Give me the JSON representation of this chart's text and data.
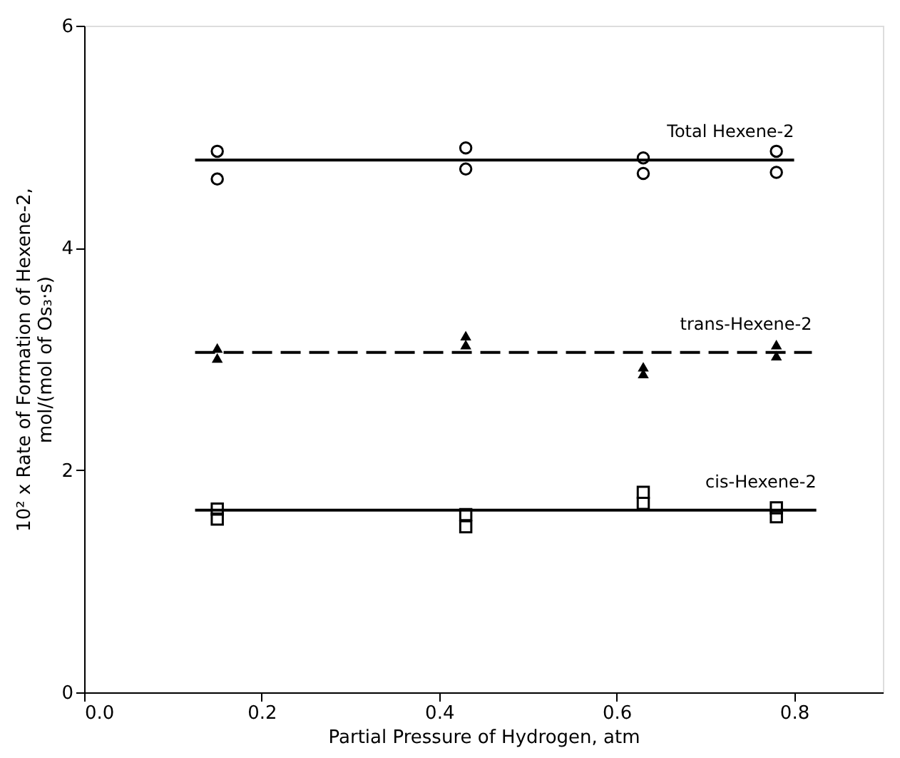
{
  "chart_data": {
    "type": "scatter",
    "xlabel": "Partial Pressure of Hydrogen, atm",
    "ylabel": "10² x Rate of Formation of Hexene-2,\nmol/(mol of Os₃·s)",
    "xlim": [
      0,
      0.9
    ],
    "ylim": [
      0,
      6
    ],
    "xticks": [
      {
        "value": 0,
        "label": "0.0"
      },
      0.2,
      0.4,
      0.6,
      0.8
    ],
    "yticks": [
      0,
      2,
      4,
      6
    ],
    "grid": false,
    "series": [
      {
        "marker": "circle",
        "color": "#000000",
        "x": [
          0.15,
          0.15,
          0.43,
          0.43,
          0.63,
          0.63,
          0.78,
          0.78
        ],
        "values": [
          4.87,
          4.62,
          4.9,
          4.71,
          4.81,
          4.67,
          4.87,
          4.68
        ]
      },
      {
        "marker": "triangle",
        "color": "#000000",
        "x": [
          0.15,
          0.15,
          0.43,
          0.43,
          0.63,
          0.63,
          0.78,
          0.78
        ],
        "values": [
          3.1,
          3.01,
          3.21,
          3.13,
          2.93,
          2.87,
          3.13,
          3.03
        ]
      },
      {
        "marker": "square",
        "color": "#000000",
        "x": [
          0.15,
          0.15,
          0.43,
          0.43,
          0.63,
          0.63,
          0.78,
          0.78
        ],
        "values": [
          1.65,
          1.56,
          1.6,
          1.49,
          1.8,
          1.7,
          1.66,
          1.58
        ]
      },
      {
        "type": "line",
        "name": "Total Hexene-2",
        "line_style": "solid",
        "color": "#000000",
        "x": [
          0.125,
          0.8
        ],
        "values": [
          4.79,
          4.79
        ]
      },
      {
        "type": "line",
        "name": "trans-Hexene-2",
        "line_style": "dashed",
        "color": "#000000",
        "x": [
          0.125,
          0.82
        ],
        "values": [
          3.06,
          3.06
        ]
      },
      {
        "type": "line",
        "name": "cis-Hexene-2",
        "line_style": "solid",
        "color": "#000000",
        "x": [
          0.125,
          0.825
        ],
        "values": [
          1.64,
          1.64
        ]
      }
    ]
  }
}
